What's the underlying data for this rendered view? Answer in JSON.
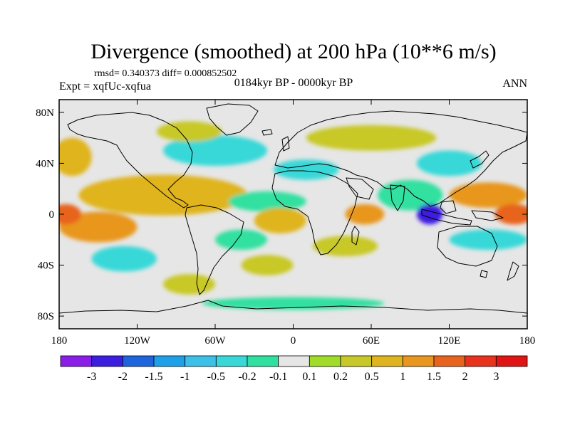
{
  "chart_data": {
    "type": "heatmap",
    "title": "Divergence (smoothed) at 200 hPa (10**6 m/s)",
    "stats": "rmsd= 0.340373 diff= 0.000852502",
    "experiment": "Expt = xqfUc-xqfua",
    "period": "0184kyr BP - 0000kyr BP",
    "season": "ANN",
    "xlim": [
      -180,
      180
    ],
    "ylim": [
      -90,
      90
    ],
    "x_ticks": [
      {
        "value": -180,
        "label": "180"
      },
      {
        "value": -120,
        "label": "120W"
      },
      {
        "value": -60,
        "label": "60W"
      },
      {
        "value": 0,
        "label": "0"
      },
      {
        "value": 60,
        "label": "60E"
      },
      {
        "value": 120,
        "label": "120E"
      },
      {
        "value": 180,
        "label": "180"
      }
    ],
    "y_ticks": [
      {
        "value": 80,
        "label": "80N"
      },
      {
        "value": 40,
        "label": "40N"
      },
      {
        "value": 0,
        "label": "0"
      },
      {
        "value": -40,
        "label": "40S"
      },
      {
        "value": -80,
        "label": "80S"
      }
    ],
    "colorbar": {
      "colors": [
        "#8a1ee8",
        "#3c1ee0",
        "#1e64dc",
        "#1ea0e8",
        "#3cc0e8",
        "#38d8d8",
        "#30e0a0",
        "#e6e6e6",
        "#a0dc28",
        "#c8c828",
        "#e0b41e",
        "#e8961e",
        "#e8641e",
        "#e8321e",
        "#e01414"
      ],
      "labels": [
        "-3",
        "-2",
        "-1.5",
        "-1",
        "-0.5",
        "-0.2",
        "-0.1",
        "0.1",
        "0.2",
        "0.5",
        "1",
        "1.5",
        "2",
        "3"
      ]
    },
    "field_features": [
      {
        "lon": -100,
        "lat": 15,
        "rx": 65,
        "ry": 16,
        "value": 0.6
      },
      {
        "lon": -150,
        "lat": -10,
        "rx": 30,
        "ry": 12,
        "value": 1.2
      },
      {
        "lon": -175,
        "lat": 0,
        "rx": 12,
        "ry": 8,
        "value": 1.6
      },
      {
        "lon": -130,
        "lat": -35,
        "rx": 25,
        "ry": 10,
        "value": -0.3
      },
      {
        "lon": -60,
        "lat": 50,
        "rx": 40,
        "ry": 12,
        "value": -0.3
      },
      {
        "lon": -20,
        "lat": 10,
        "rx": 30,
        "ry": 8,
        "value": -0.2
      },
      {
        "lon": -10,
        "lat": -5,
        "rx": 20,
        "ry": 10,
        "value": 0.6
      },
      {
        "lon": 55,
        "lat": 0,
        "rx": 15,
        "ry": 8,
        "value": 1.1
      },
      {
        "lon": 40,
        "lat": -25,
        "rx": 25,
        "ry": 8,
        "value": 0.4
      },
      {
        "lon": 90,
        "lat": 15,
        "rx": 25,
        "ry": 12,
        "value": -0.2
      },
      {
        "lon": 105,
        "lat": 0,
        "rx": 10,
        "ry": 8,
        "value": -2.5
      },
      {
        "lon": 150,
        "lat": 15,
        "rx": 30,
        "ry": 10,
        "value": 1.3
      },
      {
        "lon": 170,
        "lat": 0,
        "rx": 15,
        "ry": 8,
        "value": 1.7
      },
      {
        "lon": 120,
        "lat": 40,
        "rx": 25,
        "ry": 10,
        "value": -0.3
      },
      {
        "lon": 60,
        "lat": 60,
        "rx": 50,
        "ry": 10,
        "value": 0.4
      },
      {
        "lon": -80,
        "lat": 65,
        "rx": 25,
        "ry": 8,
        "value": 0.3
      },
      {
        "lon": 10,
        "lat": 35,
        "rx": 25,
        "ry": 8,
        "value": -0.3
      },
      {
        "lon": 150,
        "lat": -20,
        "rx": 30,
        "ry": 8,
        "value": -0.4
      },
      {
        "lon": -40,
        "lat": -20,
        "rx": 20,
        "ry": 8,
        "value": -0.2
      },
      {
        "lon": -20,
        "lat": -40,
        "rx": 20,
        "ry": 8,
        "value": 0.2
      },
      {
        "lon": -170,
        "lat": 45,
        "rx": 15,
        "ry": 15,
        "value": 0.6
      },
      {
        "lon": 0,
        "lat": -70,
        "rx": 70,
        "ry": 5,
        "value": -0.2
      },
      {
        "lon": -80,
        "lat": -55,
        "rx": 20,
        "ry": 8,
        "value": 0.2
      }
    ]
  }
}
